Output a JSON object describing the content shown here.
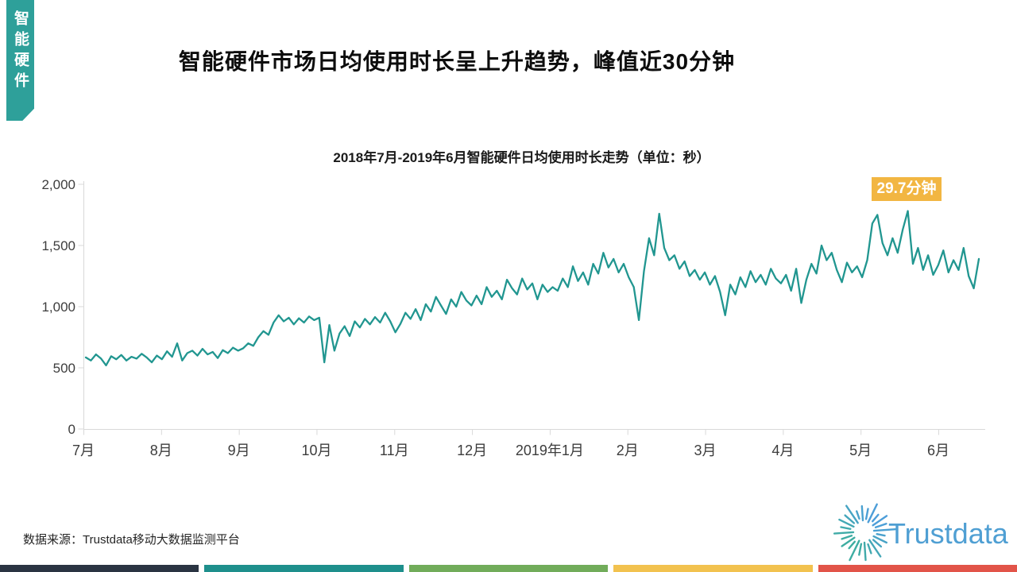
{
  "tab": {
    "label": "智能硬件",
    "color": "#2EA09A"
  },
  "title": "智能硬件市场日均使用时长呈上升趋势，峰值近30分钟",
  "chart_data": {
    "type": "line",
    "title": "2018年7月-2019年6月智能硬件日均使用时长走势（单位：秒）",
    "unit": "秒",
    "x_tick_labels": [
      "7月",
      "8月",
      "9月",
      "10月",
      "11月",
      "12月",
      "2019年1月",
      "2月",
      "3月",
      "4月",
      "5月",
      "6月"
    ],
    "y_ticks": [
      0,
      500,
      1000,
      1500,
      2000
    ],
    "y_tick_labels": [
      "0",
      "500",
      "1,000",
      "1,500",
      "2,000"
    ],
    "ylim": [
      0,
      2000
    ],
    "grid": false,
    "legend": "none",
    "annotation": {
      "text": "29.7分钟",
      "value_seconds": 1782,
      "color": "#F2B642"
    },
    "series": [
      {
        "name": "日均使用时长（秒）",
        "color": "#219690",
        "values": [
          585,
          560,
          610,
          575,
          520,
          595,
          570,
          605,
          560,
          590,
          575,
          615,
          585,
          545,
          600,
          570,
          635,
          590,
          700,
          560,
          620,
          640,
          600,
          655,
          610,
          630,
          580,
          645,
          620,
          665,
          640,
          660,
          700,
          680,
          750,
          800,
          770,
          870,
          930,
          880,
          910,
          855,
          905,
          870,
          920,
          890,
          910,
          545,
          850,
          640,
          780,
          840,
          760,
          880,
          830,
          900,
          855,
          915,
          870,
          950,
          880,
          790,
          860,
          950,
          900,
          980,
          890,
          1020,
          960,
          1080,
          1010,
          940,
          1060,
          1000,
          1120,
          1050,
          1010,
          1090,
          1020,
          1160,
          1080,
          1130,
          1060,
          1220,
          1150,
          1100,
          1230,
          1140,
          1190,
          1060,
          1180,
          1120,
          1160,
          1130,
          1230,
          1160,
          1330,
          1210,
          1280,
          1180,
          1350,
          1270,
          1440,
          1320,
          1390,
          1280,
          1350,
          1240,
          1160,
          890,
          1290,
          1560,
          1420,
          1760,
          1480,
          1380,
          1420,
          1310,
          1370,
          1250,
          1300,
          1220,
          1280,
          1180,
          1250,
          1120,
          930,
          1180,
          1100,
          1240,
          1160,
          1290,
          1200,
          1260,
          1180,
          1310,
          1230,
          1190,
          1260,
          1130,
          1310,
          1030,
          1220,
          1350,
          1270,
          1500,
          1380,
          1440,
          1300,
          1200,
          1360,
          1280,
          1330,
          1240,
          1380,
          1680,
          1750,
          1520,
          1420,
          1560,
          1440,
          1630,
          1782,
          1350,
          1480,
          1300,
          1420,
          1260,
          1340,
          1460,
          1280,
          1380,
          1300,
          1480,
          1250,
          1150,
          1390
        ]
      }
    ]
  },
  "footer": {
    "source": "数据来源：Trustdata移动大数据监测平台",
    "logo_text": "Trustdata",
    "logo_text_color": "#4F9FD3"
  },
  "bottom_bar_colors": [
    "#2A3442",
    "#1E8F8C",
    "#71AC5A",
    "#F2C24F",
    "#E25449"
  ]
}
